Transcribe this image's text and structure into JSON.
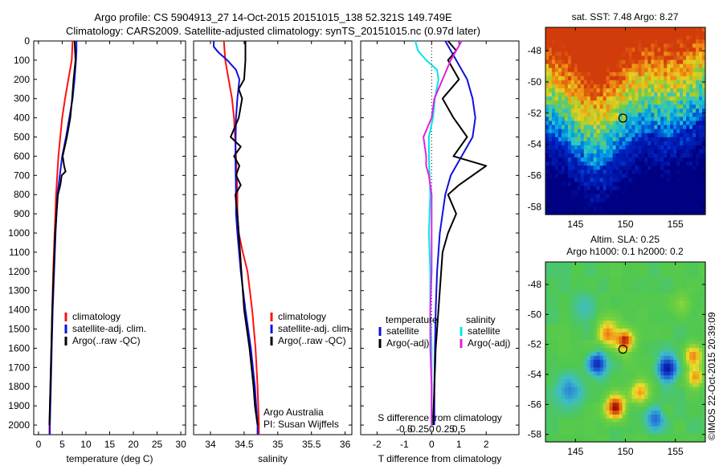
{
  "titles": {
    "line1": "Argo profile: CS 5904913_27 14-Oct-2015 20151015_138 52.321S 149.749E",
    "line2": "Climatology: CARS2009. Satellite-adjusted climatology: synTS_20151015.nc (0.97d later)"
  },
  "watermark": "©IMOS 22-Oct-2015 20:39:09",
  "colors": {
    "climatology": "#ff1010",
    "satellite": "#1010e0",
    "argo": "#000000",
    "temperature_diff": "#00e6e6",
    "salinity_diff": "#e020e0"
  },
  "chart_data": [
    {
      "type": "line",
      "panel": "temperature",
      "xlabel": "temperature (deg C)",
      "ylabel": "",
      "xlim": [
        -1,
        31
      ],
      "ylim": [
        2050,
        0
      ],
      "xticks": [
        0,
        5,
        10,
        15,
        20,
        25,
        30
      ],
      "yticks": [
        0,
        100,
        200,
        300,
        400,
        500,
        600,
        700,
        800,
        900,
        1000,
        1100,
        1200,
        1300,
        1400,
        1500,
        1600,
        1700,
        1800,
        1900,
        2000
      ],
      "legend": [
        "climatology",
        "satellite-adj. clim.",
        "Argo(..raw -QC)"
      ],
      "series": [
        {
          "name": "climatology",
          "color": "#ff1010",
          "depth": [
            0,
            100,
            200,
            300,
            400,
            600,
            800,
            1000,
            1200,
            1400,
            1600,
            1800,
            2000,
            2050
          ],
          "values": [
            7.2,
            7.0,
            6.3,
            5.6,
            5.0,
            4.2,
            3.7,
            3.4,
            3.1,
            2.9,
            2.7,
            2.5,
            2.3,
            2.3
          ]
        },
        {
          "name": "satellite-adj. clim.",
          "color": "#1010e0",
          "depth": [
            0,
            50,
            100,
            200,
            300,
            400,
            500,
            600,
            800,
            1000,
            1200,
            1400,
            1600,
            1800,
            2000,
            2050
          ],
          "values": [
            8.0,
            8.0,
            7.9,
            7.6,
            7.2,
            6.5,
            5.8,
            5.0,
            4.0,
            3.6,
            3.3,
            3.0,
            2.8,
            2.6,
            2.4,
            2.4
          ]
        },
        {
          "name": "Argo(..raw -QC)",
          "color": "#000000",
          "depth": [
            0,
            50,
            100,
            200,
            300,
            400,
            500,
            600,
            650,
            680,
            700,
            750,
            800,
            1000,
            1200,
            1400,
            1600,
            1800,
            2000
          ],
          "values": [
            7.6,
            7.7,
            7.8,
            7.4,
            7.1,
            6.7,
            6.0,
            5.1,
            5.4,
            5.7,
            4.9,
            4.6,
            4.1,
            3.5,
            3.2,
            2.9,
            2.7,
            2.5,
            2.3
          ]
        }
      ]
    },
    {
      "type": "line",
      "panel": "salinity",
      "xlabel": "salinity",
      "ylabel": "",
      "xlim": [
        33.75,
        36.1
      ],
      "ylim": [
        2050,
        0
      ],
      "xticks": [
        34,
        34.5,
        35,
        35.5,
        36
      ],
      "legend": [
        "climatology",
        "satellite-adj. clim.",
        "Argo(..raw -QC)"
      ],
      "annotations": [
        "Argo Australia",
        "PI: Susan Wijffels"
      ],
      "series": [
        {
          "name": "climatology",
          "color": "#ff1010",
          "depth": [
            0,
            100,
            200,
            300,
            400,
            600,
            800,
            900,
            1000,
            1100,
            1200,
            1400,
            1600,
            1800,
            2000,
            2050
          ],
          "values": [
            34.2,
            34.22,
            34.27,
            34.32,
            34.35,
            34.38,
            34.4,
            34.4,
            34.42,
            34.48,
            34.55,
            34.62,
            34.67,
            34.7,
            34.72,
            34.72
          ]
        },
        {
          "name": "satellite-adj. clim.",
          "color": "#1010e0",
          "depth": [
            0,
            30,
            60,
            100,
            150,
            200,
            300,
            400,
            600,
            800,
            900,
            1000,
            1200,
            1400,
            1600,
            1800,
            2000,
            2050
          ],
          "values": [
            34.05,
            34.05,
            34.12,
            34.25,
            34.38,
            34.43,
            34.4,
            34.38,
            34.37,
            34.38,
            34.38,
            34.4,
            34.45,
            34.52,
            34.6,
            34.66,
            34.7,
            34.7
          ]
        },
        {
          "name": "Argo(..raw -QC)",
          "color": "#000000",
          "depth": [
            0,
            100,
            200,
            250,
            300,
            400,
            500,
            550,
            600,
            650,
            700,
            750,
            800,
            900,
            1000,
            1200,
            1400,
            1600,
            1800,
            1900,
            2000
          ],
          "values": [
            34.52,
            34.52,
            34.5,
            34.42,
            34.47,
            34.42,
            34.3,
            34.45,
            34.35,
            34.43,
            34.38,
            34.45,
            34.37,
            34.4,
            34.42,
            34.46,
            34.5,
            34.58,
            34.64,
            34.66,
            34.7
          ]
        }
      ]
    },
    {
      "type": "line",
      "panel": "difference",
      "xlabel": "T difference from climatology",
      "x2label": "S difference from climatology",
      "xlim": [
        -2.6,
        3.2
      ],
      "ylim": [
        2050,
        0
      ],
      "xticks": [
        -2,
        -1,
        0,
        1,
        2
      ],
      "x2ticks": [
        "-0.5",
        "-0.25",
        "0",
        "0.25",
        "0.5"
      ],
      "legend_temperature": {
        "header": "temperature",
        "items": [
          "satellite",
          "Argo(-adj)"
        ]
      },
      "legend_salinity": {
        "header": "salinity",
        "items": [
          "satellite",
          "Argo(-adj)"
        ]
      },
      "series": [
        {
          "name": "temperature satellite",
          "color": "#1010e0",
          "depth": [
            0,
            100,
            200,
            300,
            400,
            500,
            600,
            700,
            800,
            900,
            1000,
            1100,
            1200,
            1400,
            1600,
            1800,
            2000
          ],
          "values": [
            0.5,
            0.9,
            1.3,
            1.5,
            1.6,
            1.5,
            1.1,
            0.7,
            0.5,
            0.4,
            0.3,
            0.25,
            0.2,
            0.15,
            0.12,
            0.1,
            0.1
          ]
        },
        {
          "name": "temperature Argo(-adj)",
          "color": "#000000",
          "depth": [
            0,
            50,
            100,
            200,
            300,
            400,
            500,
            600,
            650,
            700,
            750,
            800,
            900,
            1000,
            1100,
            1200,
            1400,
            1600,
            1800,
            2000
          ],
          "values": [
            0.6,
            0.9,
            0.6,
            1.0,
            0.4,
            0.8,
            1.3,
            0.8,
            2.0,
            1.5,
            1.0,
            0.6,
            0.9,
            0.6,
            0.4,
            0.35,
            0.25,
            0.15,
            0.1,
            0.05
          ]
        },
        {
          "name": "salinity satellite",
          "color": "#00e6e6",
          "depth": [
            0,
            50,
            100,
            150,
            200,
            300,
            400,
            500,
            600,
            800,
            1000,
            1200,
            1400,
            1600,
            1800,
            2000
          ],
          "values": [
            -0.6,
            -0.5,
            -0.2,
            0.2,
            0.25,
            0.12,
            0.05,
            -0.1,
            -0.1,
            -0.05,
            -0.1,
            -0.05,
            -0.05,
            0.0,
            0.0,
            0.0
          ]
        },
        {
          "name": "salinity Argo(-adj)",
          "color": "#e020e0",
          "depth": [
            0,
            50,
            100,
            200,
            300,
            400,
            500,
            600,
            650,
            700,
            800,
            900,
            1000,
            1200,
            1400,
            1600,
            1800,
            2000
          ],
          "values": [
            1.1,
            0.9,
            0.7,
            0.4,
            0.1,
            0.0,
            -0.3,
            -0.2,
            -0.2,
            -0.1,
            0.0,
            0.0,
            0.0,
            0.0,
            -0.05,
            -0.05,
            0.0,
            0.0
          ]
        }
      ]
    },
    {
      "type": "heatmap",
      "panel": "sst-map",
      "title": "sat. SST: 7.48 Argo: 8.27",
      "xticks": [
        145,
        150,
        155
      ],
      "yticks": [
        -48,
        -50,
        -52,
        -54,
        -56,
        -58
      ],
      "xlim": [
        142,
        158
      ],
      "ylim": [
        -58.5,
        -46.5
      ],
      "marker": {
        "lon": 149.749,
        "lat": -52.321
      }
    },
    {
      "type": "heatmap",
      "panel": "sla-map",
      "title": "Altim. SLA: 0.25",
      "subtitle": "Argo h1000: 0.1 h2000: 0.2",
      "xticks": [
        145,
        150,
        155
      ],
      "yticks": [
        -48,
        -50,
        -52,
        -54,
        -56,
        -58
      ],
      "xlim": [
        142,
        158
      ],
      "ylim": [
        -58.5,
        -46.5
      ],
      "marker": {
        "lon": 149.749,
        "lat": -52.321
      }
    }
  ]
}
